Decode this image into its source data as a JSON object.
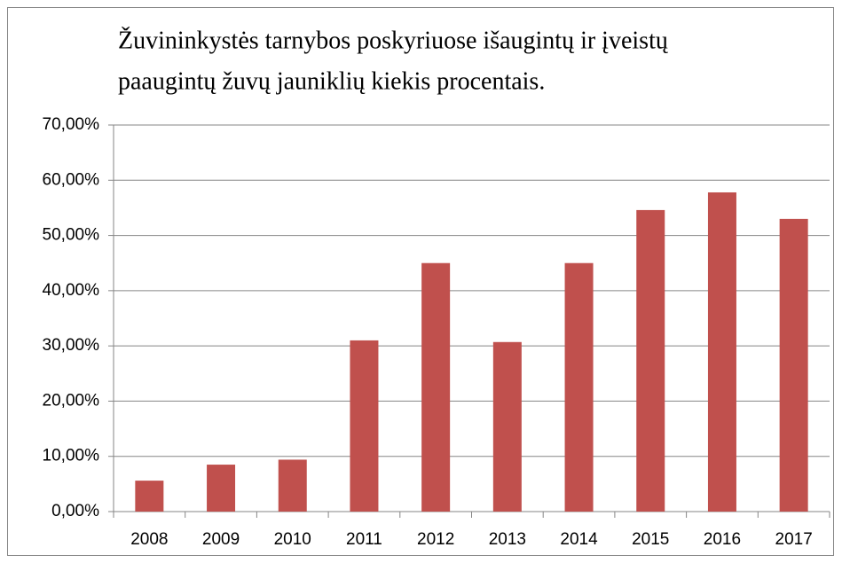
{
  "chart_data": {
    "type": "bar",
    "title": [
      "Žuvininkystės tarnybos poskyriuose išaugintų ir įveistų",
      "paaugintų žuvų jauniklių kiekis procentais."
    ],
    "categories": [
      "2008",
      "2009",
      "2010",
      "2011",
      "2012",
      "2013",
      "2014",
      "2015",
      "2016",
      "2017"
    ],
    "values": [
      5.6,
      8.5,
      9.4,
      31.0,
      45.0,
      30.7,
      45.0,
      54.6,
      57.8,
      53.0
    ],
    "color": "#c0504d",
    "ylim": [
      0,
      70
    ],
    "yticks": [
      {
        "value": 0,
        "label": "0,00%"
      },
      {
        "value": 10,
        "label": "10,00%"
      },
      {
        "value": 20,
        "label": "20,00%"
      },
      {
        "value": 30,
        "label": "30,00%"
      },
      {
        "value": 40,
        "label": "40,00%"
      },
      {
        "value": 50,
        "label": "50,00%"
      },
      {
        "value": 60,
        "label": "60,00%"
      },
      {
        "value": 70,
        "label": "70,00%"
      }
    ],
    "grid": true
  }
}
